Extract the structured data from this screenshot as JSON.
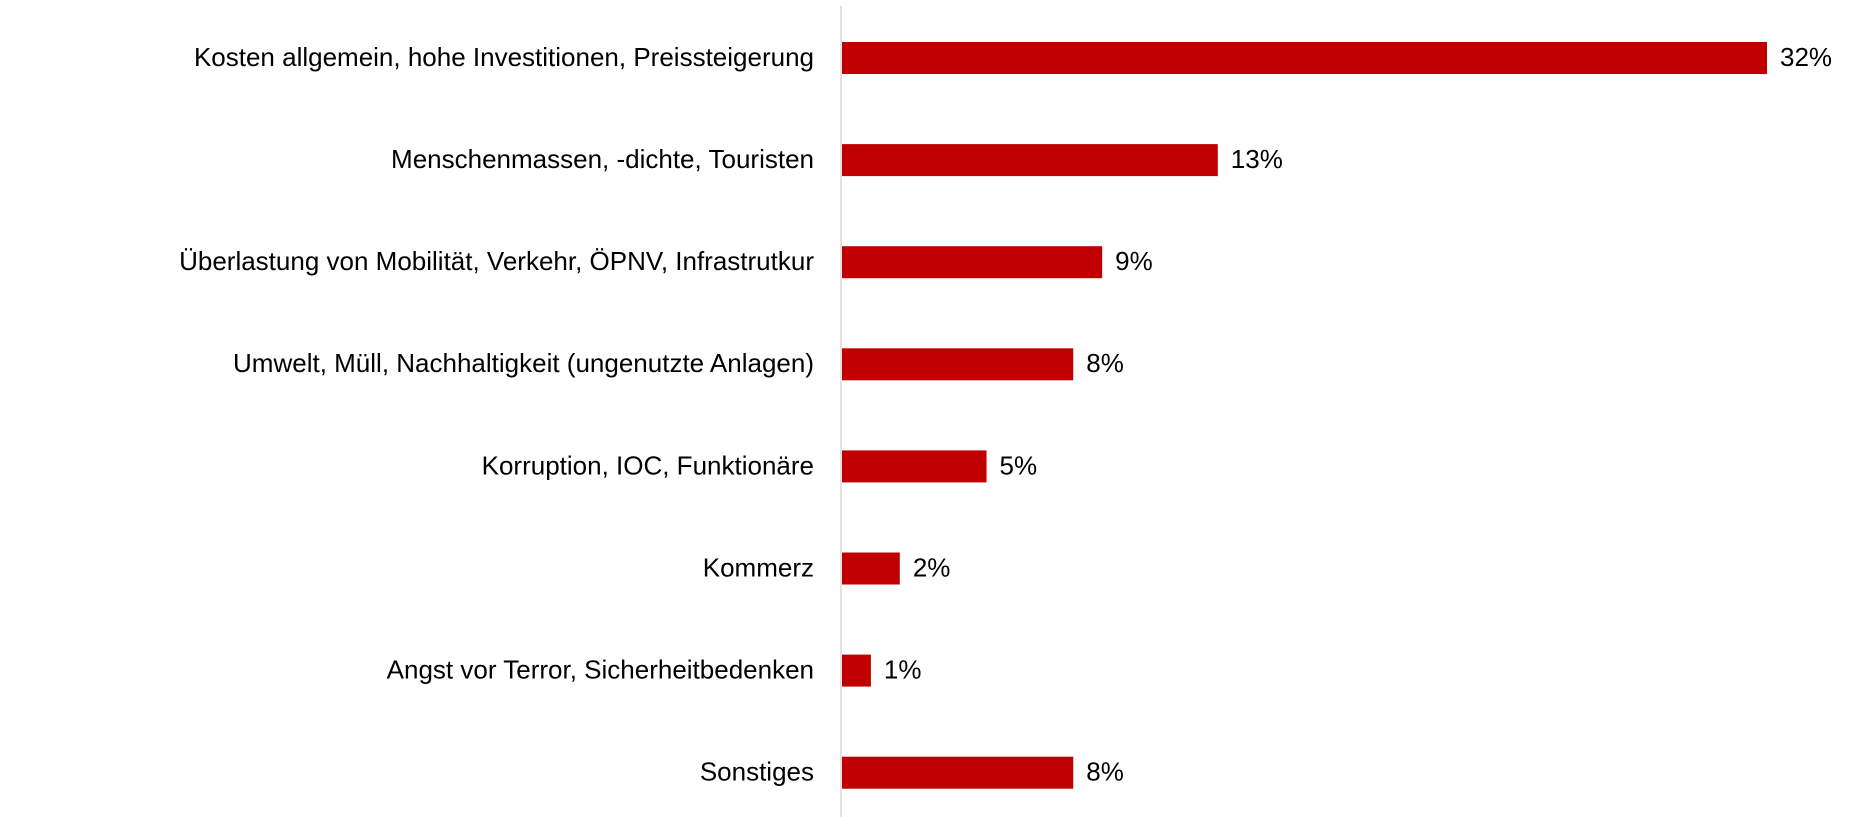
{
  "chart_data": {
    "type": "bar",
    "orientation": "horizontal",
    "categories": [
      "Kosten allgemein, hohe Investitionen, Preissteigerung",
      "Menschenmassen, -dichte, Touristen",
      "Überlastung von Mobilität, Verkehr, ÖPNV, Infrastrutkur",
      "Umwelt, Müll, Nachhaltigkeit (ungenutzte Anlagen)",
      "Korruption, IOC, Funktionäre",
      "Kommerz",
      "Angst vor Terror, Sicherheitbedenken",
      "Sonstiges"
    ],
    "values": [
      32,
      13,
      9,
      8,
      5,
      2,
      1,
      8
    ],
    "value_labels": [
      "32%",
      "13%",
      "9%",
      "8%",
      "5%",
      "2%",
      "1%",
      "8%"
    ],
    "color": "#c00000",
    "xlim": [
      0,
      32
    ]
  }
}
